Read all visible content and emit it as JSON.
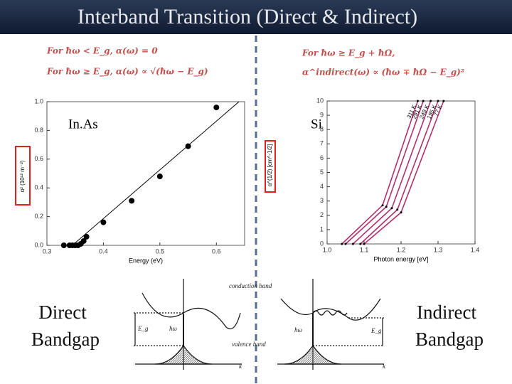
{
  "header": {
    "title": "Interband Transition (Direct & Indirect)"
  },
  "formulas": {
    "direct_below": "For ħω < E_g, α(ω) = 0",
    "direct_above": "For ħω ≥ E_g, α(ω) ∝ √(ħω − E_g)",
    "indirect_condition": "For ħω ≥ E_g + ħΩ,",
    "indirect_absorption": "α^indirect(ω) ∝ (ħω ∓ ħΩ − E_g)²"
  },
  "labels": {
    "inas": "In.As",
    "si": "Si",
    "direct": [
      "Direct",
      "Bandgap"
    ],
    "indirect": [
      "Indirect",
      "Bandgap"
    ]
  },
  "diagram": {
    "conduction": "conduction band",
    "valence": "valence band",
    "eg_left": "E_g",
    "photon_left": "ħω",
    "k_left": "k",
    "photon_right": "ħω",
    "eg_right": "E_g",
    "k_right": "k"
  },
  "chart_data": [
    {
      "type": "scatter",
      "x_label": "Energy (eV)",
      "y_label": "α² (10¹² m⁻²)",
      "xlim": [
        0.3,
        0.65
      ],
      "ylim": [
        0,
        1.0
      ],
      "xticks": [
        0.3,
        0.4,
        0.5,
        0.6
      ],
      "yticks": [
        {
          "value": 0,
          "label": "0.0"
        },
        0.2,
        0.4,
        0.6,
        0.8,
        {
          "value": 1,
          "label": "1.0"
        }
      ],
      "series": [
        {
          "color": "#000000",
          "x": [
            0.33,
            0.34,
            0.345,
            0.35,
            0.355,
            0.36,
            0.365,
            0.37,
            0.4,
            0.45,
            0.5,
            0.55,
            0.6
          ],
          "values": [
            0.0,
            0.0,
            0.0,
            0.0,
            0.0,
            0.01,
            0.03,
            0.06,
            0.16,
            0.31,
            0.48,
            0.69,
            0.96
          ]
        }
      ],
      "trend_line": {
        "color": "#000000",
        "x": [
          0.345,
          0.64
        ],
        "values": [
          0.0,
          1.0
        ]
      }
    },
    {
      "type": "line",
      "x_label": "Photon energy [eV]",
      "y_label": "α^(1/2) [cm^-1/2]",
      "xlim": [
        1.0,
        1.4
      ],
      "ylim": [
        0,
        10
      ],
      "xticks": [
        {
          "value": 1,
          "label": "1.0"
        },
        1.1,
        1.2,
        1.3,
        1.4
      ],
      "yticks": [
        0,
        1,
        2,
        3,
        4,
        5,
        6,
        7,
        8,
        9,
        10
      ],
      "series": [
        {
          "name": "311 K",
          "color": "#b0306f",
          "x": [
            1.04,
            1.15,
            1.245
          ],
          "values": [
            0,
            2.7,
            10
          ]
        },
        {
          "name": "291 K",
          "color": "#b0306f",
          "x": [
            1.05,
            1.16,
            1.26
          ],
          "values": [
            0,
            2.6,
            10
          ]
        },
        {
          "name": "249 K",
          "color": "#b0306f",
          "x": [
            1.07,
            1.175,
            1.28
          ],
          "values": [
            0,
            2.5,
            10
          ]
        },
        {
          "name": "195 K",
          "color": "#b0306f",
          "x": [
            1.09,
            1.19,
            1.3
          ],
          "values": [
            0,
            2.4,
            10
          ]
        },
        {
          "name": "77 K",
          "color": "#b0306f",
          "x": [
            1.1,
            1.2,
            1.315
          ],
          "values": [
            0,
            2.2,
            10
          ]
        }
      ]
    }
  ]
}
